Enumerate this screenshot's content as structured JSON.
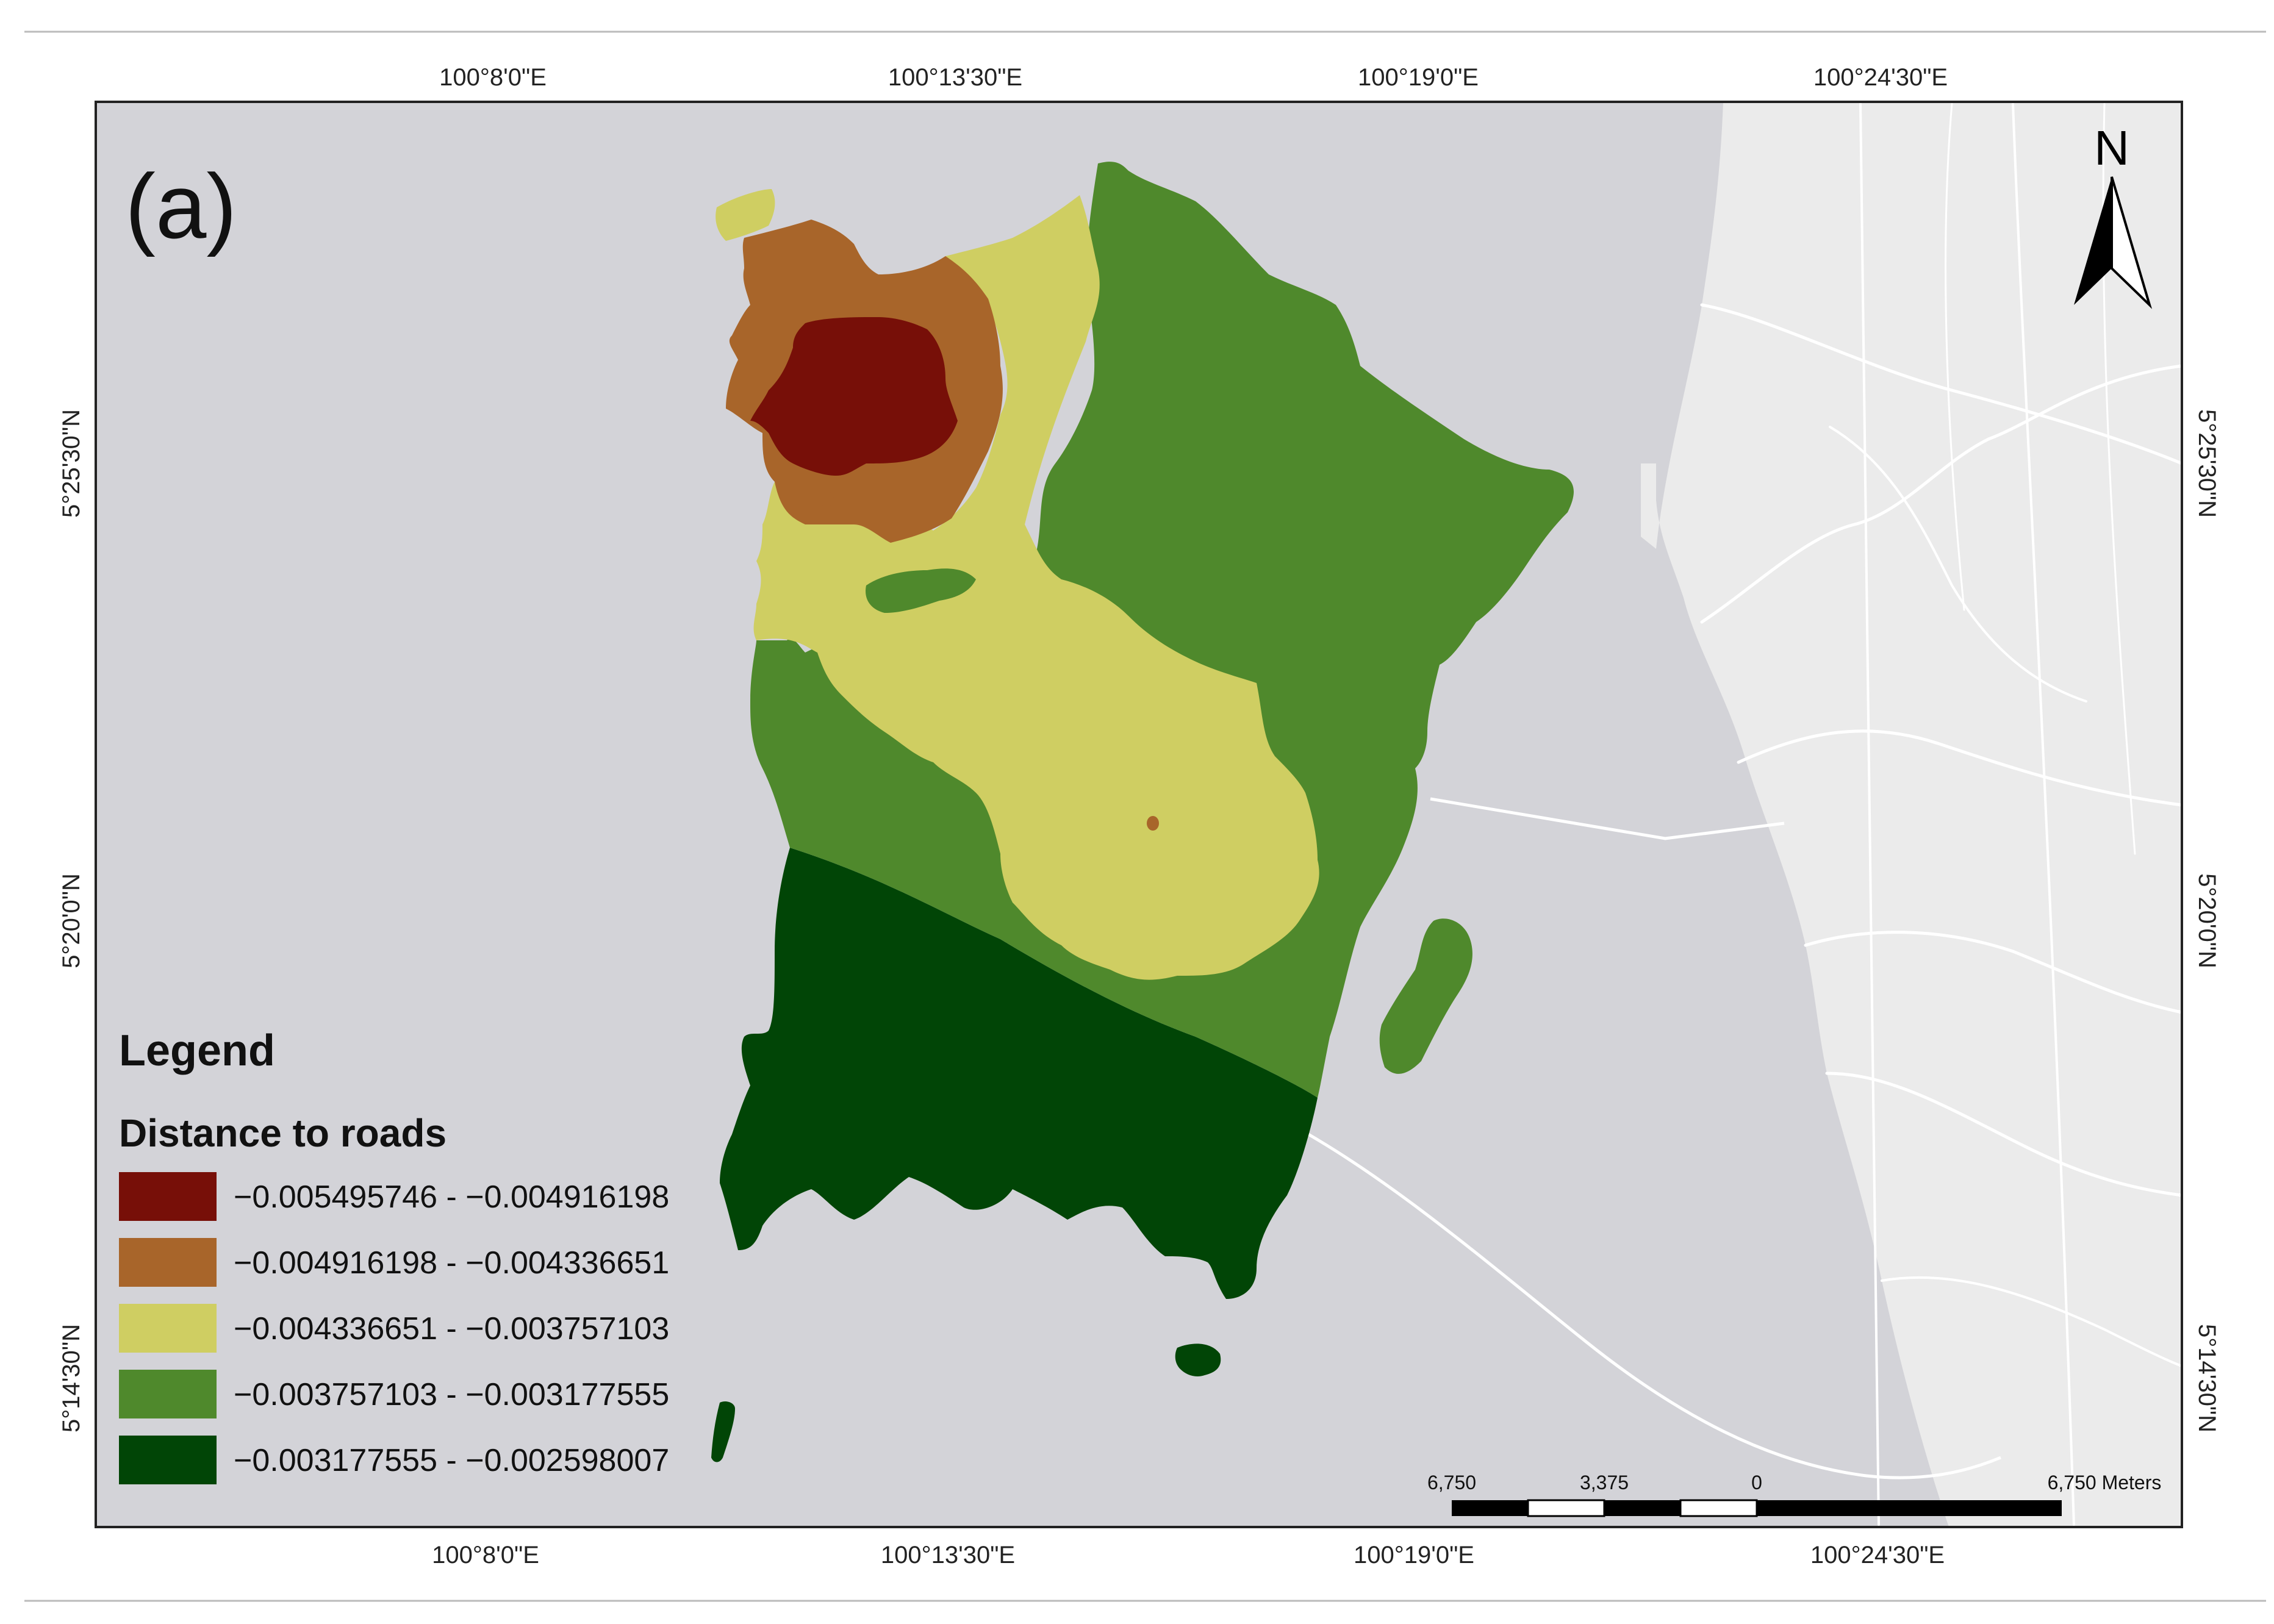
{
  "panel_label": "(a)",
  "north_label": "N",
  "coordinates": {
    "top": [
      "100°8'0\"E",
      "100°13'30\"E",
      "100°19'0\"E",
      "100°24'30\"E"
    ],
    "bottom": [
      "100°8'0\"E",
      "100°13'30\"E",
      "100°19'0\"E",
      "100°24'30\"E"
    ],
    "left": [
      "5°25'30\"N",
      "5°20'0\"N",
      "5°14'30\"N"
    ],
    "right": [
      "5°25'30\"N",
      "5°20'0\"N",
      "5°14'30\"N"
    ]
  },
  "legend": {
    "title": "Legend",
    "subtitle": "Distance to roads",
    "classes": [
      {
        "label": "−0.005495746 - −0.004916198",
        "color": "#770f08"
      },
      {
        "label": "−0.004916198 - −0.004336651",
        "color": "#a8652a"
      },
      {
        "label": "−0.004336651 - −0.003757103",
        "color": "#cfce62"
      },
      {
        "label": "−0.003757103 - −0.003177555",
        "color": "#4f892c"
      },
      {
        "label": "−0.003177555 - −0.002598007",
        "color": "#014506"
      }
    ]
  },
  "scale_bar": {
    "labels": [
      "6,750",
      "3,375",
      "0",
      "6,750 Meters"
    ]
  },
  "colors": {
    "sea": "#d3d3d8",
    "mainland": "#ebebeb",
    "road": "#ffffff",
    "frame": "#222222"
  }
}
